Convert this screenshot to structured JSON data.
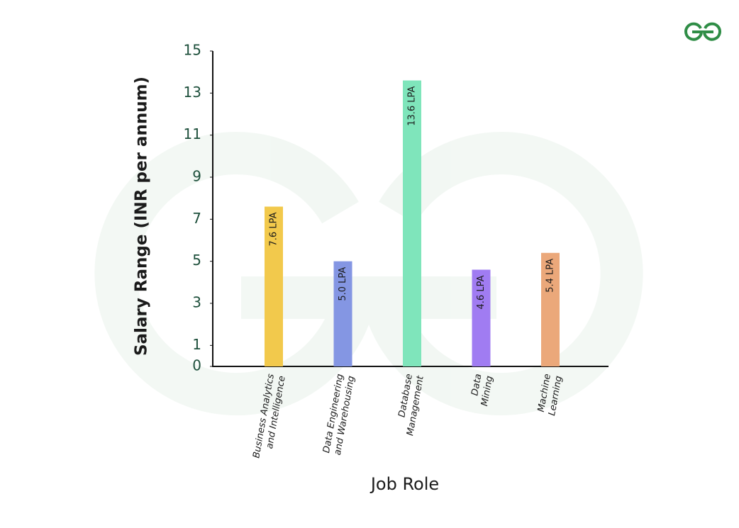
{
  "chart_data": {
    "type": "bar",
    "x_label": "Job Role",
    "y_label": "Salary Range (INR per annum)",
    "categories": [
      "Business Analytics and Intelligence",
      "Data Engineering and Warehousing",
      "Database Management",
      "Data Mining",
      "Machine Learning"
    ],
    "values": [
      7.6,
      5.0,
      13.6,
      4.6,
      5.4
    ],
    "value_labels": [
      "7.6 LPA",
      "5.0 LPA",
      "13.6 LPA",
      "4.6 LPA",
      "5.4 LPA"
    ],
    "colors": [
      "#f2c94c",
      "#8496e3",
      "#7fe5bb",
      "#a07cf2",
      "#eba87a"
    ],
    "ylim": [
      0,
      15
    ],
    "yticks": [
      0,
      1,
      3,
      5,
      7,
      9,
      11,
      13,
      15
    ],
    "grid": false
  }
}
